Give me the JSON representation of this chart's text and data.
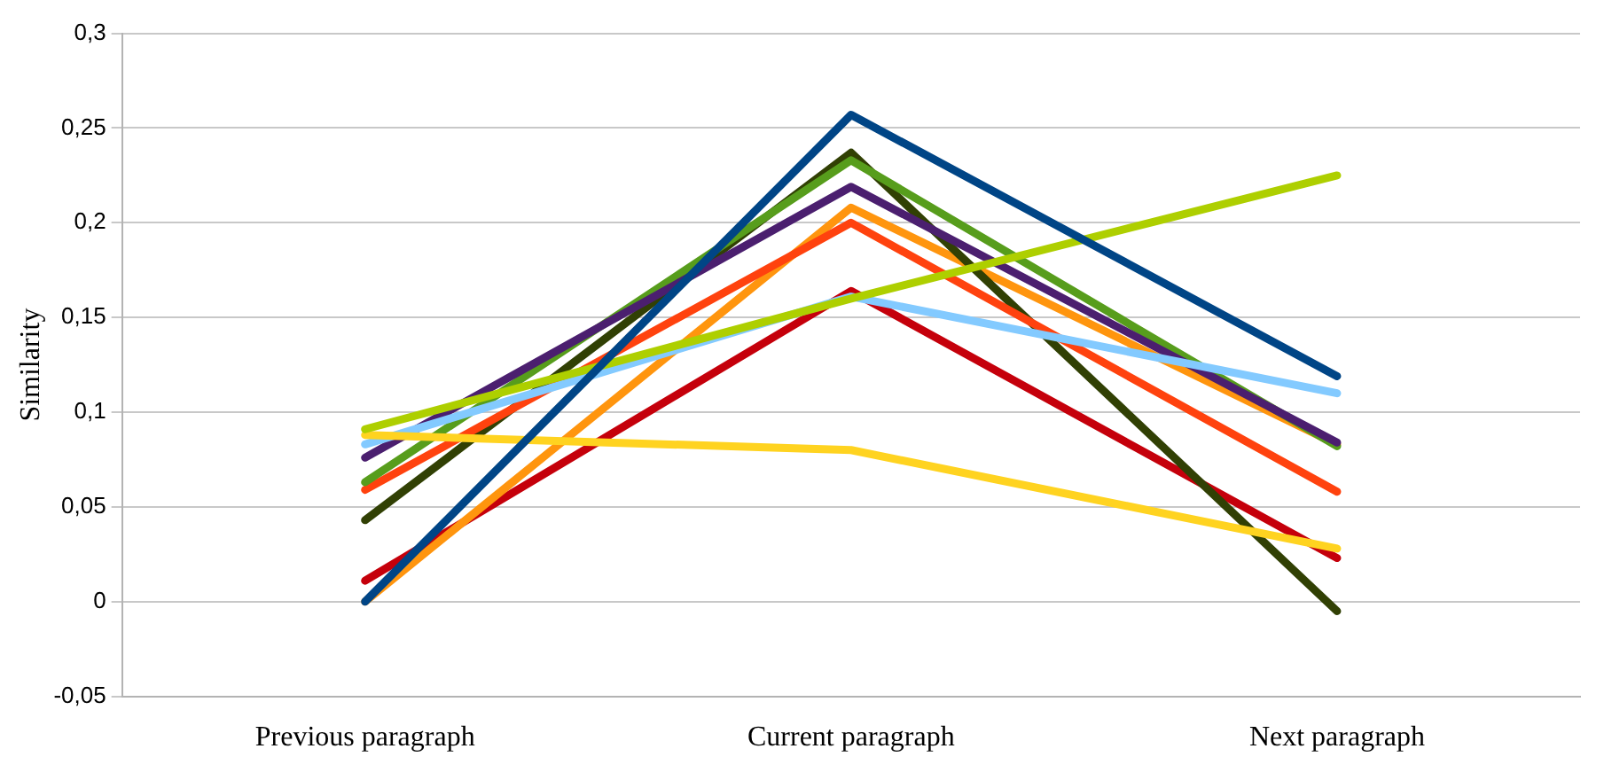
{
  "chart_data": {
    "type": "line",
    "ylabel": "Similarity",
    "categories": [
      "Previous paragraph",
      "Current paragraph",
      "Next paragraph"
    ],
    "series": [
      {
        "color": "#004586",
        "values": [
          0,
          0.257,
          0.119
        ]
      },
      {
        "color": "#aecf00",
        "values": [
          0.091,
          0.16,
          0.225
        ]
      },
      {
        "color": "#ffd320",
        "values": [
          0.088,
          0.08,
          0.028
        ]
      },
      {
        "color": "#83caff",
        "values": [
          0.083,
          0.161,
          0.11
        ]
      },
      {
        "color": "#4b1f6f",
        "values": [
          0.076,
          0.219,
          0.084
        ]
      },
      {
        "color": "#579d1c",
        "values": [
          0.063,
          0.233,
          0.082
        ]
      },
      {
        "color": "#ff420e",
        "values": [
          0.059,
          0.2,
          0.058
        ]
      },
      {
        "color": "#314004",
        "values": [
          0.043,
          0.237,
          -0.005
        ]
      },
      {
        "color": "#ff950e",
        "values": [
          0,
          0.208,
          0.083
        ]
      },
      {
        "color": "#c5000b",
        "values": [
          0.011,
          0.164,
          0.023
        ]
      }
    ],
    "ylim": [
      -0.05,
      0.3
    ],
    "yticks": [
      {
        "value": -0.05,
        "label": "-0,05"
      },
      {
        "value": 0,
        "label": "0"
      },
      {
        "value": 0.05,
        "label": "0,05"
      },
      {
        "value": 0.1,
        "label": "0,1"
      },
      {
        "value": 0.15,
        "label": "0,15"
      },
      {
        "value": 0.2,
        "label": "0,2"
      },
      {
        "value": 0.25,
        "label": "0,25"
      },
      {
        "value": 0.3,
        "label": "0,3"
      }
    ],
    "grid": "y",
    "legend": false,
    "marker": "none",
    "line_style": "solid"
  }
}
